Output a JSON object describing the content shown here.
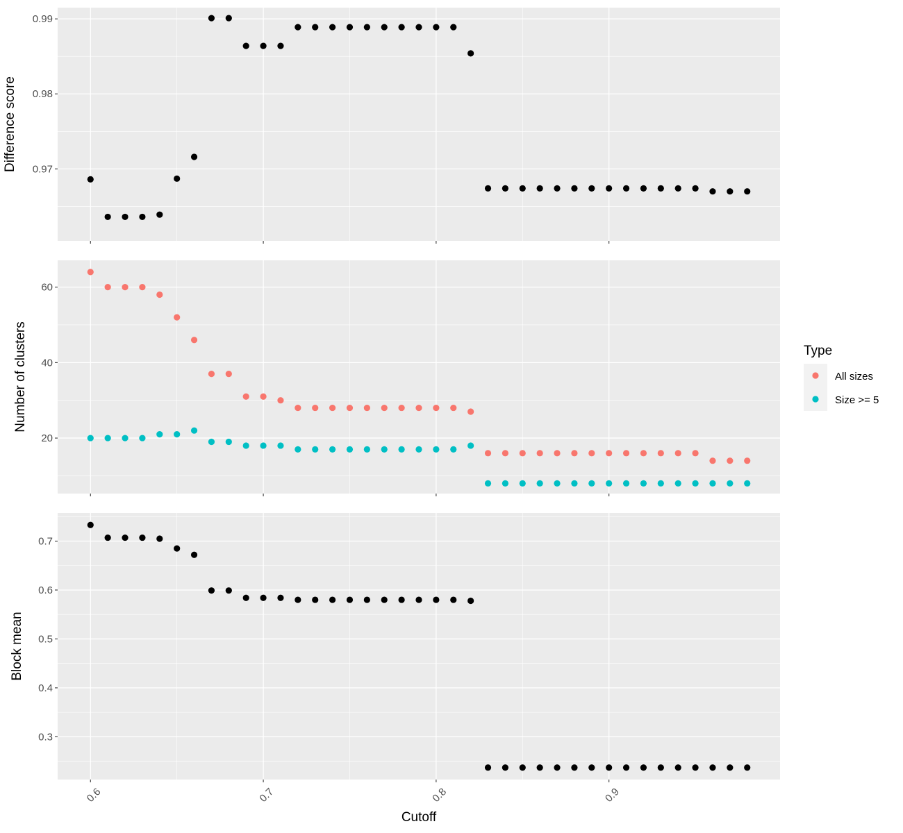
{
  "chart_data": {
    "type": "scatter",
    "x_axis": {
      "label": "Cutoff",
      "range": [
        0.581,
        0.999
      ],
      "ticks": [
        0.6,
        0.7,
        0.8,
        0.9
      ],
      "tick_labels": [
        "0.6",
        "0.7",
        "0.8",
        "0.9"
      ]
    },
    "x": [
      0.6,
      0.61,
      0.62,
      0.63,
      0.64,
      0.65,
      0.66,
      0.67,
      0.68,
      0.69,
      0.7,
      0.71,
      0.72,
      0.73,
      0.74,
      0.75,
      0.76,
      0.77,
      0.78,
      0.79,
      0.8,
      0.81,
      0.82,
      0.83,
      0.84,
      0.85,
      0.86,
      0.87,
      0.88,
      0.89,
      0.9,
      0.91,
      0.92,
      0.93,
      0.94,
      0.95,
      0.96,
      0.97,
      0.98
    ],
    "legend": {
      "title": "Type",
      "position": "right",
      "items": [
        {
          "label": "All sizes",
          "color": "#F8766D"
        },
        {
          "label": "Size >= 5",
          "color": "#00BFC4"
        }
      ]
    },
    "panels": [
      {
        "ylabel": "Difference score",
        "ylim": [
          0.9604,
          0.9915
        ],
        "yticks": [
          0.97,
          0.98,
          0.99
        ],
        "ytick_labels": [
          "0.97",
          "0.98",
          "0.99"
        ],
        "series": [
          {
            "color": "#000000",
            "values": [
              0.9686,
              0.9636,
              0.9636,
              0.9636,
              0.9639,
              0.9687,
              0.9716,
              0.9901,
              0.9901,
              0.9864,
              0.9864,
              0.9864,
              0.9889,
              0.9889,
              0.9889,
              0.9889,
              0.9889,
              0.9889,
              0.9889,
              0.9889,
              0.9889,
              0.9889,
              0.9854,
              0.9674,
              0.9674,
              0.9674,
              0.9674,
              0.9674,
              0.9674,
              0.9674,
              0.9674,
              0.9674,
              0.9674,
              0.9674,
              0.9674,
              0.9674,
              0.967,
              0.967,
              0.967
            ]
          }
        ]
      },
      {
        "ylabel": "Number of clusters",
        "ylim": [
          5.3,
          67.1
        ],
        "yticks": [
          20,
          40,
          60
        ],
        "ytick_labels": [
          "20",
          "40",
          "60"
        ],
        "series": [
          {
            "name": "All sizes",
            "color": "#F8766D",
            "values": [
              64,
              60,
              60,
              60,
              58,
              52,
              46,
              37,
              37,
              31,
              31,
              30,
              28,
              28,
              28,
              28,
              28,
              28,
              28,
              28,
              28,
              28,
              27,
              16,
              16,
              16,
              16,
              16,
              16,
              16,
              16,
              16,
              16,
              16,
              16,
              16,
              14,
              14,
              14
            ]
          },
          {
            "name": "Size >= 5",
            "color": "#00BFC4",
            "values": [
              20,
              20,
              20,
              20,
              21,
              21,
              22,
              19,
              19,
              18,
              18,
              18,
              17,
              17,
              17,
              17,
              17,
              17,
              17,
              17,
              17,
              17,
              18,
              8,
              8,
              8,
              8,
              8,
              8,
              8,
              8,
              8,
              8,
              8,
              8,
              8,
              8,
              8,
              8
            ]
          }
        ]
      },
      {
        "ylabel": "Block mean",
        "ylim": [
          0.2125,
          0.7575
        ],
        "yticks": [
          0.3,
          0.4,
          0.5,
          0.6,
          0.7
        ],
        "ytick_labels": [
          "0.3",
          "0.4",
          "0.5",
          "0.6",
          "0.7"
        ],
        "series": [
          {
            "color": "#000000",
            "values": [
              0.733,
              0.707,
              0.707,
              0.707,
              0.705,
              0.685,
              0.672,
              0.599,
              0.599,
              0.584,
              0.584,
              0.584,
              0.58,
              0.58,
              0.58,
              0.58,
              0.58,
              0.58,
              0.58,
              0.58,
              0.58,
              0.58,
              0.578,
              0.237,
              0.237,
              0.237,
              0.237,
              0.237,
              0.237,
              0.237,
              0.237,
              0.237,
              0.237,
              0.237,
              0.237,
              0.237,
              0.237,
              0.237,
              0.237
            ]
          }
        ]
      }
    ]
  }
}
